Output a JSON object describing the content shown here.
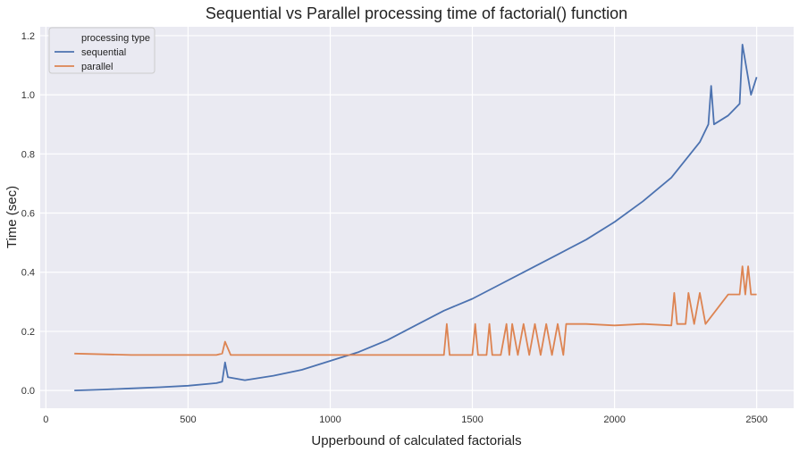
{
  "chart_data": {
    "type": "line",
    "title": "Sequential vs Parallel processing time of factorial() function",
    "xlabel": "Upperbound of calculated factorials",
    "ylabel": "Time (sec)",
    "xlim": [
      -20,
      2630
    ],
    "ylim": [
      -0.06,
      1.23
    ],
    "xticks": [
      0,
      500,
      1000,
      1500,
      2000,
      2500
    ],
    "yticks": [
      0.0,
      0.2,
      0.4,
      0.6,
      0.8,
      1.0,
      1.2
    ],
    "xtick_labels": [
      "0",
      "500",
      "1000",
      "1500",
      "2000",
      "2500"
    ],
    "ytick_labels": [
      "0.0",
      "0.2",
      "0.4",
      "0.6",
      "0.8",
      "1.0",
      "1.2"
    ],
    "grid": true,
    "legend": {
      "title": "processing type",
      "placement": "top-left",
      "entries": [
        "sequential",
        "parallel"
      ]
    },
    "series": [
      {
        "name": "sequential",
        "color": "#4c72b0",
        "x": [
          100,
          200,
          300,
          400,
          500,
          600,
          620,
          630,
          640,
          700,
          800,
          900,
          1000,
          1100,
          1200,
          1300,
          1400,
          1500,
          1600,
          1700,
          1800,
          1900,
          2000,
          2100,
          2200,
          2300,
          2330,
          2340,
          2350,
          2400,
          2440,
          2450,
          2480,
          2500
        ],
        "values": [
          0.0,
          0.003,
          0.007,
          0.011,
          0.016,
          0.025,
          0.03,
          0.095,
          0.045,
          0.035,
          0.05,
          0.07,
          0.1,
          0.13,
          0.17,
          0.22,
          0.27,
          0.31,
          0.36,
          0.41,
          0.46,
          0.51,
          0.57,
          0.64,
          0.72,
          0.84,
          0.9,
          1.03,
          0.9,
          0.93,
          0.97,
          1.17,
          1.0,
          1.06
        ]
      },
      {
        "name": "parallel",
        "color": "#dd8452",
        "x": [
          100,
          300,
          500,
          600,
          620,
          630,
          650,
          800,
          1000,
          1200,
          1400,
          1410,
          1420,
          1500,
          1510,
          1520,
          1550,
          1560,
          1570,
          1600,
          1620,
          1630,
          1640,
          1660,
          1680,
          1700,
          1720,
          1740,
          1760,
          1780,
          1800,
          1820,
          1830,
          1900,
          2000,
          2100,
          2200,
          2210,
          2220,
          2250,
          2260,
          2280,
          2300,
          2320,
          2400,
          2440,
          2450,
          2460,
          2470,
          2480,
          2500
        ],
        "values": [
          0.125,
          0.12,
          0.12,
          0.12,
          0.125,
          0.165,
          0.12,
          0.12,
          0.12,
          0.12,
          0.12,
          0.225,
          0.12,
          0.12,
          0.225,
          0.12,
          0.12,
          0.225,
          0.12,
          0.12,
          0.225,
          0.12,
          0.225,
          0.12,
          0.225,
          0.12,
          0.225,
          0.12,
          0.225,
          0.12,
          0.225,
          0.12,
          0.225,
          0.225,
          0.22,
          0.225,
          0.22,
          0.33,
          0.225,
          0.225,
          0.33,
          0.225,
          0.33,
          0.225,
          0.325,
          0.325,
          0.42,
          0.325,
          0.42,
          0.325,
          0.325
        ]
      }
    ]
  }
}
